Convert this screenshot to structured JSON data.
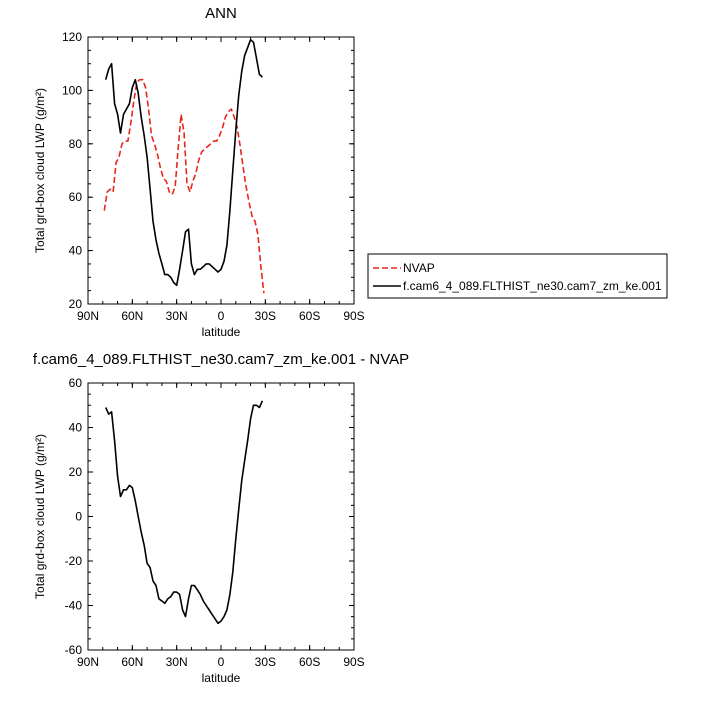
{
  "chart_data": [
    {
      "type": "line",
      "title": "ANN",
      "xlabel": "latitude",
      "ylabel": "Total grd-box cloud LWP (g/m²)",
      "xlim": [
        90,
        -90
      ],
      "ylim": [
        20,
        120
      ],
      "xticks": [
        90,
        60,
        30,
        0,
        -30,
        -60,
        -90
      ],
      "xtick_labels": [
        "90N",
        "60N",
        "30N",
        "0",
        "30S",
        "60S",
        "90S"
      ],
      "yticks": [
        20,
        40,
        60,
        80,
        100,
        120
      ],
      "ytick_labels": [
        "20",
        "40",
        "60",
        "80",
        "100",
        "120"
      ],
      "grid": false,
      "legend": "right",
      "series": [
        {
          "name": "NVAP",
          "color": "#e8261c",
          "dash": "dashed",
          "points": [
            [
              79,
              55
            ],
            [
              77,
              62
            ],
            [
              75,
              63
            ],
            [
              73,
              62
            ],
            [
              71,
              73
            ],
            [
              69,
              75
            ],
            [
              67,
              80
            ],
            [
              65,
              81
            ],
            [
              63,
              81
            ],
            [
              61,
              88
            ],
            [
              59,
              96
            ],
            [
              57,
              103
            ],
            [
              55,
              104
            ],
            [
              53,
              104
            ],
            [
              51,
              101
            ],
            [
              49,
              93
            ],
            [
              47,
              83
            ],
            [
              45,
              80
            ],
            [
              43,
              76
            ],
            [
              41,
              71
            ],
            [
              39,
              67
            ],
            [
              37,
              66
            ],
            [
              35,
              62
            ],
            [
              33,
              61
            ],
            [
              31,
              64
            ],
            [
              29,
              78
            ],
            [
              27,
              91
            ],
            [
              25,
              84
            ],
            [
              23,
              65
            ],
            [
              21,
              62
            ],
            [
              19,
              66
            ],
            [
              17,
              69
            ],
            [
              15,
              74
            ],
            [
              13,
              77
            ],
            [
              11,
              78
            ],
            [
              9,
              79
            ],
            [
              7,
              80
            ],
            [
              5,
              81
            ],
            [
              3,
              81
            ],
            [
              1,
              83
            ],
            [
              -1,
              86
            ],
            [
              -3,
              90
            ],
            [
              -5,
              92
            ],
            [
              -7,
              93
            ],
            [
              -9,
              90
            ],
            [
              -11,
              86
            ],
            [
              -13,
              79
            ],
            [
              -15,
              71
            ],
            [
              -17,
              64
            ],
            [
              -19,
              58
            ],
            [
              -21,
              53
            ],
            [
              -23,
              51
            ],
            [
              -25,
              46
            ],
            [
              -27,
              34
            ],
            [
              -29,
              24
            ]
          ]
        },
        {
          "name": "f.cam6_4_089.FLTHIST_ne30.cam7_zm_ke.001",
          "color": "#000000",
          "dash": "solid",
          "points": [
            [
              78,
              104
            ],
            [
              76,
              108
            ],
            [
              74,
              110
            ],
            [
              72,
              95
            ],
            [
              70,
              91
            ],
            [
              68,
              84
            ],
            [
              66,
              91
            ],
            [
              64,
              93
            ],
            [
              62,
              95
            ],
            [
              60,
              101
            ],
            [
              58,
              104
            ],
            [
              56,
              99
            ],
            [
              54,
              90
            ],
            [
              52,
              83
            ],
            [
              50,
              75
            ],
            [
              48,
              63
            ],
            [
              46,
              51
            ],
            [
              44,
              44
            ],
            [
              42,
              39
            ],
            [
              40,
              35
            ],
            [
              38,
              31
            ],
            [
              36,
              31
            ],
            [
              34,
              30
            ],
            [
              32,
              28
            ],
            [
              30,
              27
            ],
            [
              28,
              33
            ],
            [
              26,
              40
            ],
            [
              24,
              47
            ],
            [
              22,
              48
            ],
            [
              20,
              35
            ],
            [
              18,
              31
            ],
            [
              16,
              33
            ],
            [
              14,
              33
            ],
            [
              12,
              34
            ],
            [
              10,
              35
            ],
            [
              8,
              35
            ],
            [
              6,
              34
            ],
            [
              4,
              33
            ],
            [
              2,
              32
            ],
            [
              0,
              33
            ],
            [
              -2,
              36
            ],
            [
              -4,
              42
            ],
            [
              -6,
              55
            ],
            [
              -8,
              70
            ],
            [
              -10,
              85
            ],
            [
              -12,
              98
            ],
            [
              -14,
              107
            ],
            [
              -16,
              113
            ],
            [
              -18,
              116
            ],
            [
              -20,
              119
            ],
            [
              -22,
              118
            ],
            [
              -24,
              112
            ],
            [
              -26,
              106
            ],
            [
              -28,
              105
            ]
          ]
        }
      ]
    },
    {
      "type": "line",
      "title": "f.cam6_4_089.FLTHIST_ne30.cam7_zm_ke.001 - NVAP",
      "xlabel": "latitude",
      "ylabel": "Total grd-box cloud LWP (g/m²)",
      "xlim": [
        90,
        -90
      ],
      "ylim": [
        -60,
        60
      ],
      "xticks": [
        90,
        60,
        30,
        0,
        -30,
        -60,
        -90
      ],
      "xtick_labels": [
        "90N",
        "60N",
        "30N",
        "0",
        "30S",
        "60S",
        "90S"
      ],
      "yticks": [
        -60,
        -40,
        -20,
        0,
        20,
        40,
        60
      ],
      "ytick_labels": [
        "-60",
        "-40",
        "-20",
        "0",
        "20",
        "40",
        "60"
      ],
      "grid": false,
      "series": [
        {
          "color": "#000000",
          "dash": "solid",
          "points": [
            [
              78,
              49
            ],
            [
              76,
              46
            ],
            [
              74,
              47
            ],
            [
              72,
              34
            ],
            [
              70,
              18
            ],
            [
              68,
              9
            ],
            [
              66,
              12
            ],
            [
              64,
              12
            ],
            [
              62,
              14
            ],
            [
              60,
              13
            ],
            [
              58,
              7
            ],
            [
              56,
              0
            ],
            [
              54,
              -7
            ],
            [
              52,
              -13
            ],
            [
              50,
              -21
            ],
            [
              48,
              -23
            ],
            [
              46,
              -29
            ],
            [
              44,
              -31
            ],
            [
              42,
              -37
            ],
            [
              40,
              -38
            ],
            [
              38,
              -39
            ],
            [
              36,
              -37
            ],
            [
              34,
              -36
            ],
            [
              32,
              -34
            ],
            [
              30,
              -34
            ],
            [
              28,
              -35
            ],
            [
              26,
              -42
            ],
            [
              24,
              -45
            ],
            [
              22,
              -37
            ],
            [
              20,
              -31
            ],
            [
              18,
              -31
            ],
            [
              16,
              -33
            ],
            [
              14,
              -35
            ],
            [
              12,
              -38
            ],
            [
              10,
              -40
            ],
            [
              8,
              -42
            ],
            [
              6,
              -44
            ],
            [
              4,
              -46
            ],
            [
              2,
              -48
            ],
            [
              0,
              -47
            ],
            [
              -2,
              -45
            ],
            [
              -4,
              -42
            ],
            [
              -6,
              -35
            ],
            [
              -8,
              -25
            ],
            [
              -10,
              -10
            ],
            [
              -12,
              3
            ],
            [
              -14,
              16
            ],
            [
              -16,
              25
            ],
            [
              -18,
              34
            ],
            [
              -20,
              44
            ],
            [
              -22,
              50
            ],
            [
              -24,
              50
            ],
            [
              -26,
              49
            ],
            [
              -28,
              52
            ]
          ]
        }
      ]
    }
  ]
}
